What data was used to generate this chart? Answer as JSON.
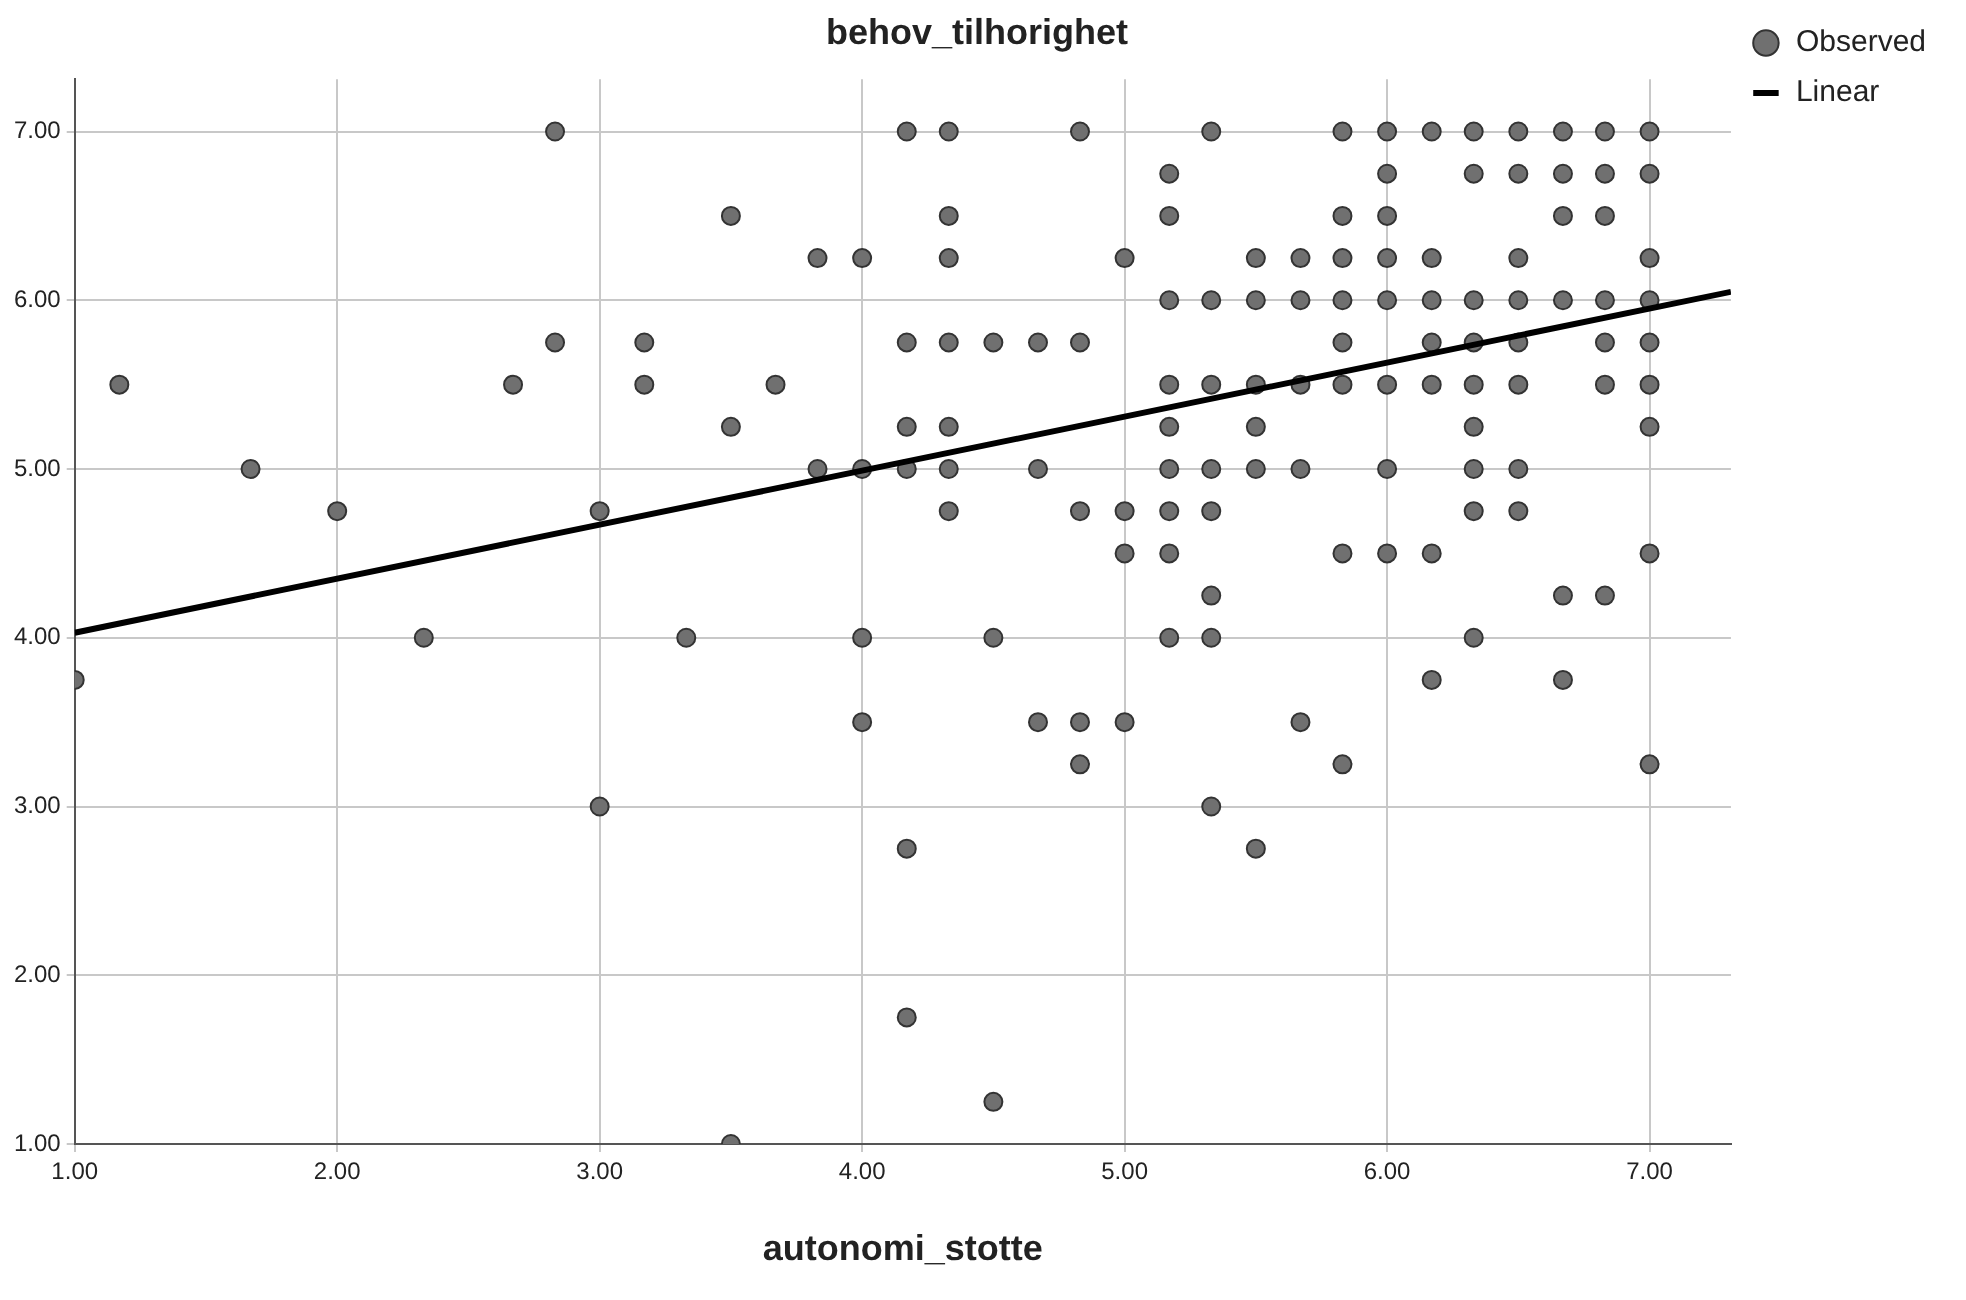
{
  "chart_data": {
    "type": "scatter",
    "title": "behov_tilhorighet",
    "xlabel": "autonomi_stotte",
    "xlim": [
      1,
      7.31
    ],
    "ylim": [
      1,
      7.31
    ],
    "xticks": [
      {
        "value": 1,
        "label": "1.00"
      },
      {
        "value": 2,
        "label": "2.00"
      },
      {
        "value": 3,
        "label": "3.00"
      },
      {
        "value": 4,
        "label": "4.00"
      },
      {
        "value": 5,
        "label": "5.00"
      },
      {
        "value": 6,
        "label": "6.00"
      },
      {
        "value": 7,
        "label": "7.00"
      }
    ],
    "yticks": [
      {
        "value": 1,
        "label": "1.00"
      },
      {
        "value": 2,
        "label": "2.00"
      },
      {
        "value": 3,
        "label": "3.00"
      },
      {
        "value": 4,
        "label": "4.00"
      },
      {
        "value": 5,
        "label": "5.00"
      },
      {
        "value": 6,
        "label": "6.00"
      },
      {
        "value": 7,
        "label": "7.00"
      }
    ],
    "grid": true,
    "legend": "top right",
    "series": [
      {
        "name": "Observed",
        "type": "scatter",
        "color": "#707070",
        "marker": "circle",
        "x": [
          1,
          1.17,
          1.67,
          2,
          2.33,
          2.67,
          2.83,
          2.83,
          3,
          3,
          3.17,
          3.17,
          3.33,
          3.5,
          3.5,
          3.5,
          3.67,
          3.83,
          3.83,
          4,
          4,
          4,
          4,
          4.17,
          4.17,
          4.17,
          4.17,
          4.17,
          4.17,
          4.33,
          4.33,
          4.33,
          4.33,
          4.33,
          4.33,
          4.33,
          4.5,
          4.5,
          4.5,
          4.67,
          4.67,
          4.67,
          4.83,
          4.83,
          4.83,
          4.83,
          4.83,
          5,
          5,
          5,
          5,
          5.17,
          5.17,
          5.17,
          5.17,
          5.17,
          5.17,
          5.17,
          5.17,
          5.17,
          5.33,
          5.33,
          5.33,
          5.33,
          5.33,
          5.33,
          5.33,
          5.33,
          5.5,
          5.5,
          5.5,
          5.5,
          5.5,
          5.5,
          5.67,
          5.67,
          5.67,
          5.67,
          5.67,
          5.83,
          5.83,
          5.83,
          5.83,
          5.83,
          5.83,
          5.83,
          5.83,
          6,
          6,
          6,
          6,
          6,
          6,
          6,
          6,
          6.17,
          6.17,
          6.17,
          6.17,
          6.17,
          6.17,
          6.17,
          6.33,
          6.33,
          6.33,
          6.33,
          6.33,
          6.33,
          6.33,
          6.33,
          6.33,
          6.5,
          6.5,
          6.5,
          6.5,
          6.5,
          6.5,
          6.5,
          6.5,
          6.67,
          6.67,
          6.67,
          6.67,
          6.67,
          6.67,
          6.83,
          6.83,
          6.83,
          6.83,
          6.83,
          6.83,
          6.83,
          7,
          7,
          7,
          7,
          7,
          7,
          7,
          7,
          7
        ],
        "values": [
          3.75,
          5.5,
          5,
          4.75,
          4,
          5.5,
          7,
          5.75,
          4.75,
          3,
          5.75,
          5.5,
          4,
          6.5,
          5.25,
          1,
          5.5,
          6.25,
          5,
          6.25,
          5,
          4,
          3.5,
          7,
          5.75,
          5.25,
          5,
          2.75,
          1.75,
          7,
          6.5,
          6.25,
          5.75,
          5.25,
          5,
          4.75,
          5.75,
          4,
          1.25,
          5.75,
          5,
          3.5,
          7,
          5.75,
          4.75,
          3.5,
          3.25,
          6.25,
          4.75,
          4.5,
          3.5,
          6.75,
          6.5,
          6,
          5.5,
          5.25,
          5,
          4.75,
          4.5,
          4,
          7,
          6,
          5.5,
          5,
          4.75,
          4.25,
          4,
          3,
          6.25,
          6,
          5.5,
          5.25,
          5,
          2.75,
          6.25,
          6,
          5.5,
          5,
          3.5,
          7,
          6.5,
          6.25,
          6,
          5.75,
          5.5,
          4.5,
          3.25,
          7,
          6.75,
          6.5,
          6.25,
          6,
          5.5,
          5,
          4.5,
          7,
          6.25,
          6,
          5.75,
          5.5,
          4.5,
          3.75,
          7,
          6.75,
          6,
          5.75,
          5.5,
          5.25,
          5,
          4.75,
          4,
          7,
          6.75,
          6.25,
          6,
          5.75,
          5.5,
          5,
          4.75,
          7,
          6.75,
          6.5,
          6,
          4.25,
          3.75,
          7,
          6.75,
          6.5,
          6,
          5.75,
          5.5,
          4.25,
          7,
          6.75,
          6.25,
          6,
          5.75,
          5.5,
          5.25,
          4.5,
          3.25
        ]
      },
      {
        "name": "Linear",
        "type": "line",
        "color": "#000000",
        "marker": "none",
        "x": [
          1,
          7.31
        ],
        "values": [
          4.03,
          6.05
        ]
      }
    ]
  }
}
